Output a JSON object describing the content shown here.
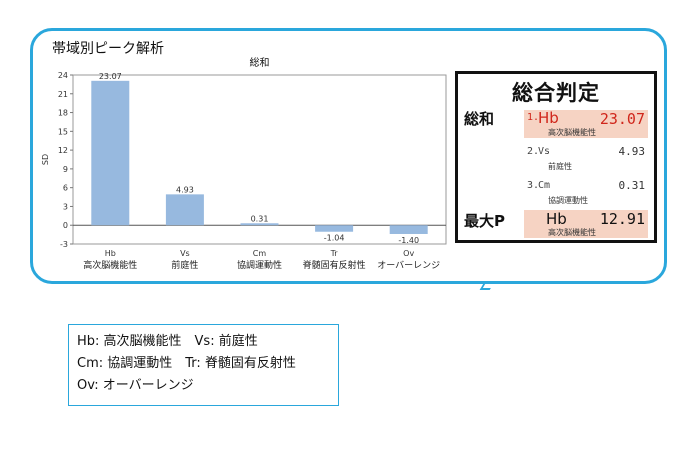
{
  "panel": {
    "title": "帯域別ピーク解析"
  },
  "chart_data": {
    "type": "bar",
    "title": "総和",
    "ylabel": "SD",
    "ylim": [
      -3,
      24
    ],
    "yticks": [
      24,
      21,
      18,
      15,
      12,
      9,
      6,
      3,
      0,
      -3
    ],
    "categories": [
      "Hb",
      "Vs",
      "Cm",
      "Tr",
      "Ov"
    ],
    "category_descriptions": [
      "高次脳機能性",
      "前庭性",
      "協調運動性",
      "脊髄固有反射性",
      "オーバーレンジ"
    ],
    "values": [
      23.07,
      4.93,
      0.31,
      -1.04,
      -1.4
    ],
    "value_labels": [
      "23.07",
      "4.93",
      "0.31",
      "-1.04",
      "-1.40"
    ],
    "bar_color": "#97b9df",
    "grid": false
  },
  "judgement": {
    "title": "総合判定",
    "sum_label": "総和",
    "max_label": "最大P",
    "top": {
      "rank": "1.",
      "name": "Hb",
      "value": "23.07",
      "desc": "高次脳機能性"
    },
    "second": {
      "rank": "2.",
      "name": "Vs",
      "value": "4.93",
      "desc": "前庭性"
    },
    "third": {
      "rank": "3.",
      "name": "Cm",
      "value": "0.31",
      "desc": "協調運動性"
    },
    "max": {
      "name": "Hb",
      "value": "12.91",
      "desc": "高次脳機能性"
    },
    "highlight_color": "#f6d3c3",
    "accent_color": "#d0261b"
  },
  "legend": {
    "lines": [
      "Hb: 高次脳機能性　Vs: 前庭性",
      "Cm: 協調運動性　Tr: 脊髄固有反射性",
      "Ov: オーバーレンジ"
    ]
  }
}
